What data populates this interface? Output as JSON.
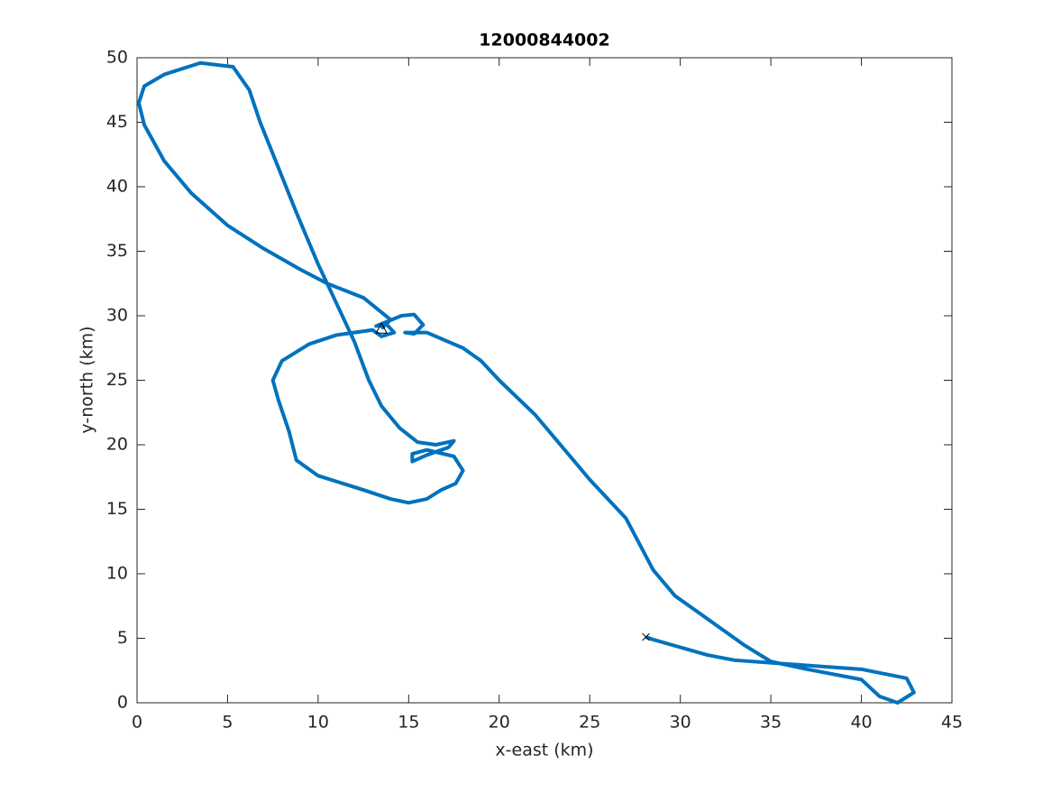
{
  "chart_data": {
    "type": "line",
    "title": "12000844002",
    "x_label": "x-east (km)",
    "y_label": "y-north (km)",
    "xlim": [
      0,
      45
    ],
    "ylim": [
      0,
      50
    ],
    "xticks": [
      0,
      5,
      10,
      15,
      20,
      25,
      30,
      35,
      40,
      45
    ],
    "yticks": [
      0,
      5,
      10,
      15,
      20,
      25,
      30,
      35,
      40,
      45,
      50
    ],
    "series": [
      {
        "color": "#0072bd",
        "x": [
          13.5,
          14.0,
          12.5,
          10.5,
          9.0,
          7,
          5,
          3,
          1.5,
          0.4,
          0.1,
          0.4,
          1.5,
          3.5,
          5.3,
          6.2,
          6.8,
          7.8,
          8.8,
          10,
          11,
          12,
          12.8,
          13.5,
          14.5,
          15.5,
          16.5,
          17.5,
          17.2,
          16,
          15.2,
          15.2,
          16,
          17.5,
          18,
          17.6,
          16.8,
          16,
          15,
          14,
          12.5,
          10,
          8.8,
          8.4,
          7.8,
          7.5,
          8,
          9.5,
          11,
          13,
          13.5,
          14.2,
          13.8,
          13.2,
          14.6,
          15.3,
          15.8,
          15.3,
          14.8,
          16,
          18,
          19,
          20,
          22,
          25,
          27,
          28.5,
          29.7,
          31.5,
          33.5,
          35,
          37,
          40,
          41,
          42,
          42.9,
          42.5,
          40,
          36,
          33,
          31.5,
          30,
          28.5,
          28.1
        ],
        "y": [
          29.0,
          29.7,
          31.4,
          32.5,
          33.6,
          35.2,
          37,
          39.5,
          42,
          44.8,
          46.5,
          47.8,
          48.7,
          49.6,
          49.3,
          47.5,
          45,
          41.5,
          38,
          34,
          31,
          28,
          25,
          23,
          21.3,
          20.2,
          20,
          20.3,
          19.8,
          19.2,
          18.7,
          19.3,
          19.6,
          19.1,
          18,
          17,
          16.5,
          15.8,
          15.5,
          15.8,
          16.5,
          17.6,
          18.8,
          21,
          23.5,
          25,
          26.5,
          27.8,
          28.5,
          28.9,
          28.4,
          28.7,
          29.3,
          29.2,
          30,
          30.1,
          29.3,
          28.6,
          28.7,
          28.7,
          27.5,
          26.5,
          25,
          22.3,
          17.3,
          14.3,
          10.3,
          8.3,
          6.5,
          4.5,
          3.2,
          2.6,
          1.8,
          0.5,
          0,
          0.8,
          1.9,
          2.6,
          3,
          3.3,
          3.7,
          4.3,
          4.9,
          5.1
        ]
      }
    ]
  }
}
